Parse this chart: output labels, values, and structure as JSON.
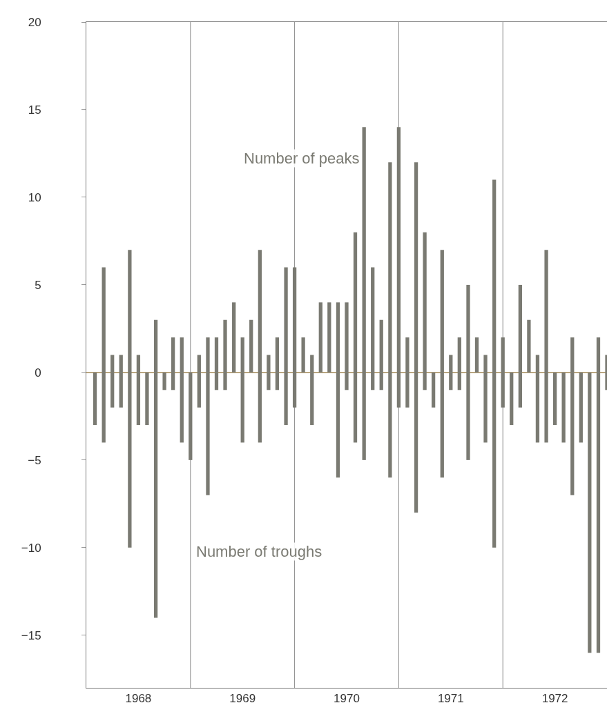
{
  "chart_data": {
    "type": "bar",
    "x": [
      1968.083,
      1968.167,
      1968.25,
      1968.333,
      1968.417,
      1968.5,
      1968.583,
      1968.667,
      1968.75,
      1968.833,
      1968.917,
      1969.0,
      1969.083,
      1969.167,
      1969.25,
      1969.333,
      1969.417,
      1969.5,
      1969.583,
      1969.667,
      1969.75,
      1969.833,
      1969.917,
      1970.0,
      1970.083,
      1970.167,
      1970.25,
      1970.333,
      1970.417,
      1970.5,
      1970.583,
      1970.667,
      1970.75,
      1970.833,
      1970.917,
      1971.0,
      1971.083,
      1971.167,
      1971.25,
      1971.333,
      1971.417,
      1971.5,
      1971.583,
      1971.667,
      1971.75,
      1971.833,
      1971.917,
      1972.0,
      1972.083,
      1972.167,
      1972.25,
      1972.333,
      1972.417,
      1972.5,
      1972.583,
      1972.667,
      1972.75,
      1972.833,
      1972.917,
      1973.0
    ],
    "series": [
      {
        "name": "Number of peaks",
        "color": "#7a7a72",
        "values": [
          0,
          6,
          1,
          1,
          7,
          1,
          0,
          3,
          0,
          2,
          2,
          0,
          1,
          2,
          2,
          3,
          4,
          2,
          3,
          7,
          1,
          2,
          6,
          6,
          2,
          1,
          4,
          4,
          4,
          4,
          8,
          14,
          6,
          3,
          12,
          14,
          2,
          12,
          8,
          0,
          7,
          1,
          2,
          5,
          2,
          1,
          11,
          2,
          0,
          5,
          3,
          1,
          7,
          0,
          0,
          2,
          0,
          0,
          2,
          1
        ]
      },
      {
        "name": "Number of troughs",
        "color": "#7a7a72",
        "values": [
          -3,
          -4,
          -2,
          -2,
          -10,
          -3,
          -3,
          -14,
          -1,
          -1,
          -4,
          -5,
          -2,
          -7,
          -1,
          -1,
          0,
          -4,
          0,
          -4,
          -1,
          -1,
          -3,
          -2,
          0,
          -3,
          0,
          0,
          -6,
          -1,
          -4,
          -5,
          -1,
          -1,
          -6,
          -2,
          -2,
          -8,
          -1,
          -2,
          -6,
          -1,
          -1,
          -5,
          0,
          -4,
          -10,
          -2,
          -3,
          -2,
          0,
          -4,
          -4,
          -3,
          -4,
          -7,
          -4,
          -16,
          -16,
          -1
        ]
      }
    ],
    "xlim": [
      1968,
      1973
    ],
    "xticks": [
      {
        "value": 1968.5,
        "label": "1968"
      },
      {
        "value": 1969.5,
        "label": "1969"
      },
      {
        "value": 1970.5,
        "label": "1970"
      },
      {
        "value": 1971.5,
        "label": "1971"
      },
      {
        "value": 1972.5,
        "label": "1972"
      }
    ],
    "ylim": [
      -18,
      20
    ],
    "yticks": [
      20,
      15,
      10,
      5,
      0,
      {
        "value": -5,
        "label": "−5"
      },
      {
        "value": -10,
        "label": "−10"
      },
      {
        "value": -15,
        "label": "−15"
      }
    ],
    "stacked": true,
    "ref_lines": [
      {
        "axis": "y",
        "value": 0,
        "color": "#b9a57f"
      },
      {
        "axis": "x",
        "value": 1969,
        "color": "#8a8a8a"
      },
      {
        "axis": "x",
        "value": 1970,
        "color": "#8a8a8a"
      },
      {
        "axis": "x",
        "value": 1971,
        "color": "#8a8a8a"
      },
      {
        "axis": "x",
        "value": 1972,
        "color": "#8a8a8a"
      }
    ],
    "grid": false
  }
}
